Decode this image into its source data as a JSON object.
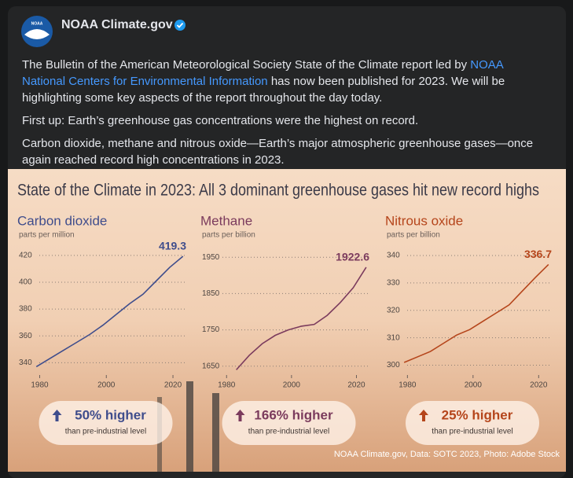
{
  "post": {
    "logo": "NOAA",
    "author": "NOAA Climate.gov",
    "intro_before": "The Bulletin of the American Meteorological Society State of the Climate report led by ",
    "link": "NOAA National Centers for Environmental Information",
    "intro_after": " has now been published for 2023. We will be highlighting some key aspects of the report throughout the day today.",
    "paragraphs": [
      "First up: Earth’s greenhouse gas concentrations were the highest on record.",
      "Carbon dioxide, methane and nitrous oxide—Earth’s major atmospheric greenhouse gases—once again reached record high concentrations in 2023."
    ]
  },
  "graphic": {
    "title": "State of the Climate in 2023: All 3 dominant greenhouse gases hit new record highs",
    "credit": "NOAA Climate.gov, Data: SOTC 2023, Photo: Adobe Stock"
  },
  "chart_data": [
    {
      "type": "line",
      "title": "Carbon dioxide",
      "subtitle": "parts per million",
      "color": "#3f4d8c",
      "x": [
        1979,
        1983,
        1987,
        1991,
        1995,
        1999,
        2003,
        2007,
        2011,
        2015,
        2019,
        2023
      ],
      "values": [
        337,
        343,
        349,
        355,
        361,
        368,
        376,
        384,
        391,
        401,
        411,
        419.3
      ],
      "xlim": [
        1978,
        2024
      ],
      "xticks": [
        1980,
        2000,
        2020
      ],
      "ylim": [
        332,
        424
      ],
      "yticks": [
        340,
        360,
        380,
        400,
        420
      ],
      "grid": true,
      "badge": "50% higher",
      "badge_note": "than pre-industrial level"
    },
    {
      "type": "line",
      "title": "Methane",
      "subtitle": "parts per billion",
      "color": "#7b3b5d",
      "x": [
        1983,
        1987,
        1991,
        1995,
        1999,
        2003,
        2007,
        2011,
        2015,
        2019,
        2023
      ],
      "values": [
        1640,
        1680,
        1712,
        1735,
        1750,
        1760,
        1765,
        1790,
        1825,
        1866,
        1922.6
      ],
      "xlim": [
        1978,
        2024
      ],
      "xticks": [
        1980,
        2000,
        2020
      ],
      "ylim": [
        1630,
        1970
      ],
      "yticks": [
        1650,
        1750,
        1850,
        1950
      ],
      "grid": true,
      "badge": "166% higher",
      "badge_note": "than pre-industrial level"
    },
    {
      "type": "line",
      "title": "Nitrous oxide",
      "subtitle": "parts per billion",
      "color": "#b5451b",
      "x": [
        1979,
        1983,
        1987,
        1991,
        1995,
        1999,
        2003,
        2007,
        2011,
        2015,
        2019,
        2023
      ],
      "values": [
        301,
        303,
        305,
        308,
        311,
        313,
        316,
        319,
        322,
        327,
        332,
        336.7
      ],
      "xlim": [
        1978,
        2024
      ],
      "xticks": [
        1980,
        2000,
        2020
      ],
      "ylim": [
        297,
        342
      ],
      "yticks": [
        300,
        310,
        320,
        330,
        340
      ],
      "grid": true,
      "badge": "25% higher",
      "badge_note": "than pre-industrial level"
    }
  ]
}
